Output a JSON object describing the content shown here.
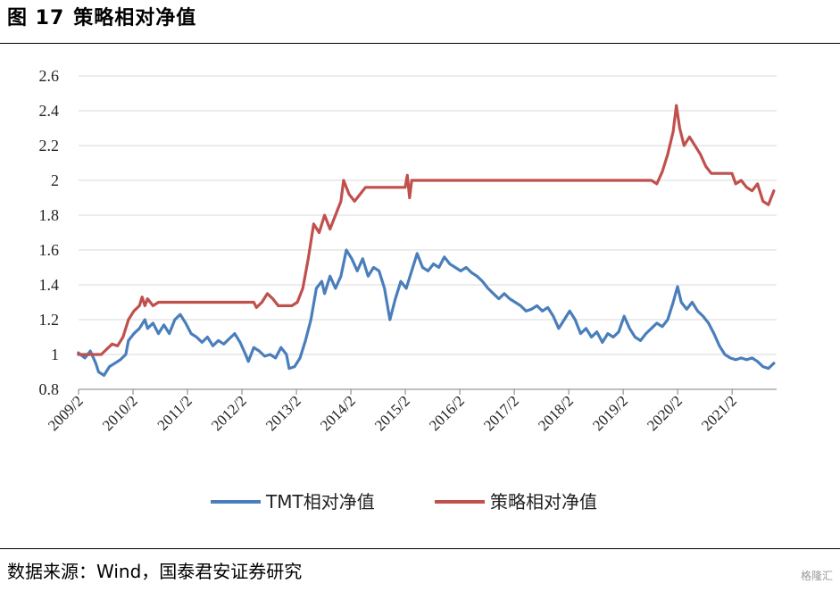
{
  "figure": {
    "number": "图 17",
    "title": "策略相对净值"
  },
  "source": "数据来源：Wind，国泰君安证券研究",
  "watermark": "格隆汇",
  "chart_data": {
    "type": "line",
    "ylim": [
      0.8,
      2.6
    ],
    "yticks": [
      0.8,
      1,
      1.2,
      1.4,
      1.6,
      1.8,
      2,
      2.2,
      2.4,
      2.6
    ],
    "xlim": [
      2009.083,
      2021.9
    ],
    "xticks": [
      {
        "label": "2009/2",
        "x": 2009.083
      },
      {
        "label": "2010/2",
        "x": 2010.083
      },
      {
        "label": "2011/2",
        "x": 2011.083
      },
      {
        "label": "2012/2",
        "x": 2012.083
      },
      {
        "label": "2013/2",
        "x": 2013.083
      },
      {
        "label": "2014/2",
        "x": 2014.083
      },
      {
        "label": "2015/2",
        "x": 2015.083
      },
      {
        "label": "2016/2",
        "x": 2016.083
      },
      {
        "label": "2017/2",
        "x": 2017.083
      },
      {
        "label": "2018/2",
        "x": 2018.083
      },
      {
        "label": "2019/2",
        "x": 2019.083
      },
      {
        "label": "2020/2",
        "x": 2020.083
      },
      {
        "label": "2021/2",
        "x": 2021.083
      }
    ],
    "grid": true,
    "legend_position": "bottom",
    "series": [
      {
        "name": "TMT相对净值",
        "color": "#4a7ebb",
        "points": [
          [
            2009.08,
            1.01
          ],
          [
            2009.2,
            0.98
          ],
          [
            2009.3,
            1.02
          ],
          [
            2009.4,
            0.95
          ],
          [
            2009.45,
            0.9
          ],
          [
            2009.55,
            0.88
          ],
          [
            2009.65,
            0.93
          ],
          [
            2009.75,
            0.95
          ],
          [
            2009.85,
            0.97
          ],
          [
            2009.95,
            1.0
          ],
          [
            2010.0,
            1.08
          ],
          [
            2010.1,
            1.12
          ],
          [
            2010.2,
            1.15
          ],
          [
            2010.3,
            1.2
          ],
          [
            2010.35,
            1.15
          ],
          [
            2010.45,
            1.18
          ],
          [
            2010.55,
            1.12
          ],
          [
            2010.65,
            1.17
          ],
          [
            2010.75,
            1.12
          ],
          [
            2010.85,
            1.2
          ],
          [
            2010.95,
            1.23
          ],
          [
            2011.05,
            1.18
          ],
          [
            2011.15,
            1.12
          ],
          [
            2011.25,
            1.1
          ],
          [
            2011.35,
            1.07
          ],
          [
            2011.45,
            1.1
          ],
          [
            2011.55,
            1.05
          ],
          [
            2011.65,
            1.08
          ],
          [
            2011.75,
            1.06
          ],
          [
            2011.85,
            1.09
          ],
          [
            2011.95,
            1.12
          ],
          [
            2012.05,
            1.07
          ],
          [
            2012.15,
            1.0
          ],
          [
            2012.2,
            0.96
          ],
          [
            2012.3,
            1.04
          ],
          [
            2012.4,
            1.02
          ],
          [
            2012.5,
            0.99
          ],
          [
            2012.6,
            1.0
          ],
          [
            2012.7,
            0.98
          ],
          [
            2012.8,
            1.04
          ],
          [
            2012.9,
            1.0
          ],
          [
            2012.95,
            0.92
          ],
          [
            2013.05,
            0.93
          ],
          [
            2013.15,
            0.98
          ],
          [
            2013.25,
            1.08
          ],
          [
            2013.35,
            1.2
          ],
          [
            2013.45,
            1.38
          ],
          [
            2013.55,
            1.42
          ],
          [
            2013.6,
            1.35
          ],
          [
            2013.7,
            1.45
          ],
          [
            2013.8,
            1.38
          ],
          [
            2013.9,
            1.45
          ],
          [
            2014.0,
            1.6
          ],
          [
            2014.1,
            1.55
          ],
          [
            2014.2,
            1.48
          ],
          [
            2014.3,
            1.55
          ],
          [
            2014.4,
            1.45
          ],
          [
            2014.5,
            1.5
          ],
          [
            2014.6,
            1.48
          ],
          [
            2014.7,
            1.38
          ],
          [
            2014.8,
            1.2
          ],
          [
            2014.9,
            1.32
          ],
          [
            2015.0,
            1.42
          ],
          [
            2015.1,
            1.38
          ],
          [
            2015.2,
            1.48
          ],
          [
            2015.3,
            1.58
          ],
          [
            2015.4,
            1.5
          ],
          [
            2015.5,
            1.48
          ],
          [
            2015.6,
            1.52
          ],
          [
            2015.7,
            1.5
          ],
          [
            2015.8,
            1.56
          ],
          [
            2015.9,
            1.52
          ],
          [
            2016.0,
            1.5
          ],
          [
            2016.1,
            1.48
          ],
          [
            2016.2,
            1.5
          ],
          [
            2016.3,
            1.47
          ],
          [
            2016.4,
            1.45
          ],
          [
            2016.5,
            1.42
          ],
          [
            2016.6,
            1.38
          ],
          [
            2016.7,
            1.35
          ],
          [
            2016.8,
            1.32
          ],
          [
            2016.9,
            1.35
          ],
          [
            2017.0,
            1.32
          ],
          [
            2017.1,
            1.3
          ],
          [
            2017.2,
            1.28
          ],
          [
            2017.3,
            1.25
          ],
          [
            2017.4,
            1.26
          ],
          [
            2017.5,
            1.28
          ],
          [
            2017.6,
            1.25
          ],
          [
            2017.7,
            1.27
          ],
          [
            2017.8,
            1.22
          ],
          [
            2017.9,
            1.15
          ],
          [
            2018.0,
            1.2
          ],
          [
            2018.1,
            1.25
          ],
          [
            2018.2,
            1.2
          ],
          [
            2018.3,
            1.12
          ],
          [
            2018.4,
            1.15
          ],
          [
            2018.5,
            1.1
          ],
          [
            2018.6,
            1.13
          ],
          [
            2018.7,
            1.07
          ],
          [
            2018.8,
            1.12
          ],
          [
            2018.9,
            1.1
          ],
          [
            2019.0,
            1.13
          ],
          [
            2019.1,
            1.22
          ],
          [
            2019.2,
            1.15
          ],
          [
            2019.3,
            1.1
          ],
          [
            2019.4,
            1.08
          ],
          [
            2019.5,
            1.12
          ],
          [
            2019.6,
            1.15
          ],
          [
            2019.7,
            1.18
          ],
          [
            2019.8,
            1.16
          ],
          [
            2019.9,
            1.2
          ],
          [
            2020.0,
            1.3
          ],
          [
            2020.08,
            1.39
          ],
          [
            2020.15,
            1.3
          ],
          [
            2020.25,
            1.26
          ],
          [
            2020.35,
            1.3
          ],
          [
            2020.45,
            1.25
          ],
          [
            2020.55,
            1.22
          ],
          [
            2020.65,
            1.18
          ],
          [
            2020.75,
            1.12
          ],
          [
            2020.85,
            1.05
          ],
          [
            2020.95,
            1.0
          ],
          [
            2021.05,
            0.98
          ],
          [
            2021.15,
            0.97
          ],
          [
            2021.25,
            0.98
          ],
          [
            2021.35,
            0.97
          ],
          [
            2021.45,
            0.98
          ],
          [
            2021.55,
            0.96
          ],
          [
            2021.65,
            0.93
          ],
          [
            2021.75,
            0.92
          ],
          [
            2021.85,
            0.95
          ]
        ]
      },
      {
        "name": "策略相对净值",
        "color": "#c0504d",
        "points": [
          [
            2009.08,
            1.0
          ],
          [
            2009.3,
            1.0
          ],
          [
            2009.5,
            1.0
          ],
          [
            2009.6,
            1.03
          ],
          [
            2009.7,
            1.06
          ],
          [
            2009.8,
            1.05
          ],
          [
            2009.9,
            1.1
          ],
          [
            2010.0,
            1.2
          ],
          [
            2010.1,
            1.25
          ],
          [
            2010.2,
            1.28
          ],
          [
            2010.25,
            1.33
          ],
          [
            2010.3,
            1.28
          ],
          [
            2010.35,
            1.32
          ],
          [
            2010.45,
            1.28
          ],
          [
            2010.55,
            1.3
          ],
          [
            2010.7,
            1.3
          ],
          [
            2011.0,
            1.3
          ],
          [
            2011.5,
            1.3
          ],
          [
            2012.0,
            1.3
          ],
          [
            2012.3,
            1.3
          ],
          [
            2012.35,
            1.27
          ],
          [
            2012.45,
            1.3
          ],
          [
            2012.55,
            1.35
          ],
          [
            2012.65,
            1.32
          ],
          [
            2012.75,
            1.28
          ],
          [
            2013.0,
            1.28
          ],
          [
            2013.1,
            1.3
          ],
          [
            2013.2,
            1.38
          ],
          [
            2013.3,
            1.55
          ],
          [
            2013.4,
            1.75
          ],
          [
            2013.5,
            1.7
          ],
          [
            2013.6,
            1.8
          ],
          [
            2013.7,
            1.72
          ],
          [
            2013.8,
            1.8
          ],
          [
            2013.9,
            1.88
          ],
          [
            2013.95,
            2.0
          ],
          [
            2014.05,
            1.92
          ],
          [
            2014.15,
            1.88
          ],
          [
            2014.25,
            1.92
          ],
          [
            2014.35,
            1.96
          ],
          [
            2014.5,
            1.96
          ],
          [
            2015.0,
            1.96
          ],
          [
            2015.08,
            1.96
          ],
          [
            2015.12,
            2.03
          ],
          [
            2015.16,
            1.9
          ],
          [
            2015.2,
            2.0
          ],
          [
            2015.5,
            2.0
          ],
          [
            2016.0,
            2.0
          ],
          [
            2017.0,
            2.0
          ],
          [
            2018.0,
            2.0
          ],
          [
            2019.0,
            2.0
          ],
          [
            2019.6,
            2.0
          ],
          [
            2019.7,
            1.98
          ],
          [
            2019.8,
            2.05
          ],
          [
            2019.9,
            2.15
          ],
          [
            2020.0,
            2.28
          ],
          [
            2020.06,
            2.43
          ],
          [
            2020.12,
            2.3
          ],
          [
            2020.2,
            2.2
          ],
          [
            2020.3,
            2.25
          ],
          [
            2020.4,
            2.2
          ],
          [
            2020.5,
            2.15
          ],
          [
            2020.6,
            2.08
          ],
          [
            2020.7,
            2.04
          ],
          [
            2020.8,
            2.04
          ],
          [
            2021.0,
            2.04
          ],
          [
            2021.08,
            2.04
          ],
          [
            2021.15,
            1.98
          ],
          [
            2021.25,
            2.0
          ],
          [
            2021.35,
            1.96
          ],
          [
            2021.45,
            1.94
          ],
          [
            2021.55,
            1.98
          ],
          [
            2021.65,
            1.88
          ],
          [
            2021.75,
            1.86
          ],
          [
            2021.85,
            1.94
          ]
        ]
      }
    ]
  }
}
